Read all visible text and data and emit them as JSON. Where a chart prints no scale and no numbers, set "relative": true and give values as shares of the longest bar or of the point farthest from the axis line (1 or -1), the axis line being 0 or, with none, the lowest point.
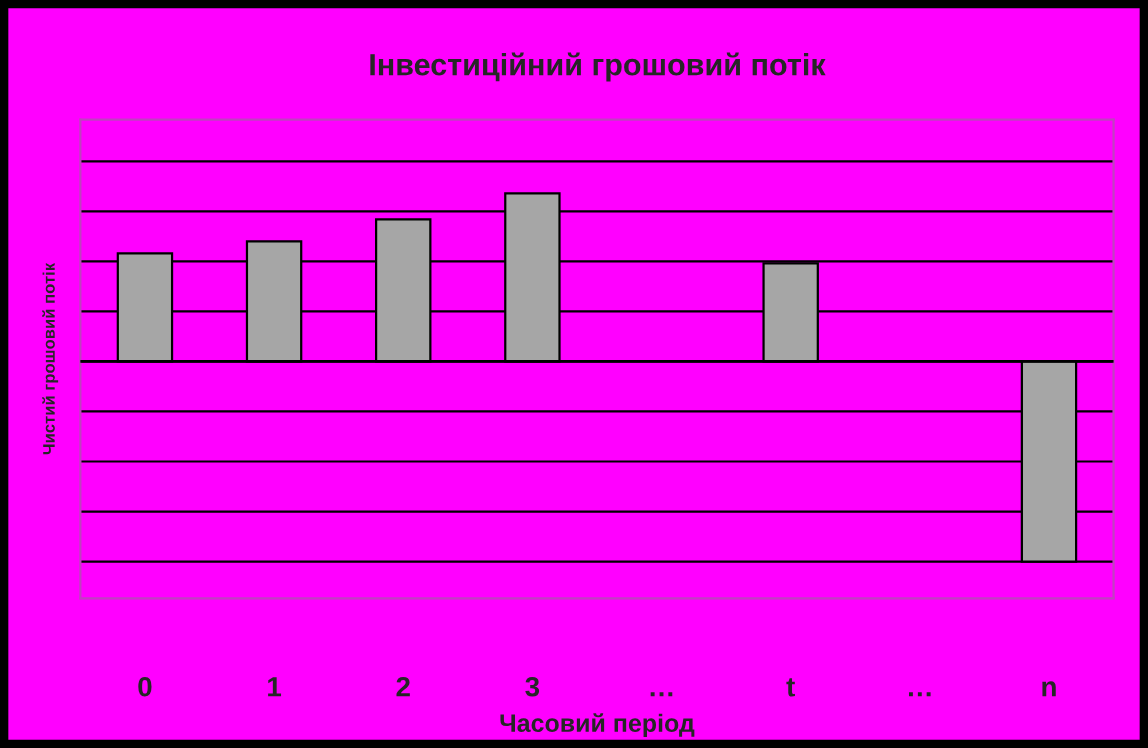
{
  "chart_data": {
    "type": "bar",
    "title": "Інвестиційний грошовий потік",
    "xlabel": "Часовий період",
    "ylabel": "Чистий грошовий потік",
    "categories": [
      "0",
      "1",
      "2",
      "3",
      "…",
      "t",
      "…",
      "n"
    ],
    "relative": true,
    "values": [
      0.54,
      0.6,
      0.71,
      0.84,
      null,
      0.49,
      null,
      -1
    ],
    "color": "#a6a6a6",
    "grid": "y"
  }
}
